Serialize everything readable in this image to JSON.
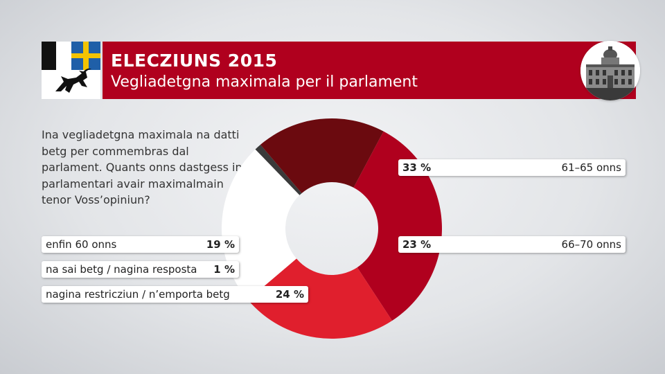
{
  "header": {
    "title": "ELECZIUNS 2015",
    "subtitle": "Vegliadetgna maximala per il parlament"
  },
  "question": "Ina vegliadetgna maximala na datti betg per commembras dal parlament. Quants onns dastgess in parlamentari avair maximalmain tenor Voss’opiniun?",
  "colors": {
    "brand_red": "#b0001e",
    "slice_61_65": "#b0001e",
    "slice_66_70": "#e01f2d",
    "slice_none": "#ffffff",
    "slice_unknown": "#3a3a3a",
    "slice_60": "#6b0a0f"
  },
  "chart_data": {
    "type": "pie",
    "variant": "donut",
    "start_angle_deg": 28,
    "direction": "clockwise",
    "slices": [
      {
        "label": "61–65 onns",
        "value": 33,
        "value_label": "33 %",
        "color": "#b0001e"
      },
      {
        "label": "66–70 onns",
        "value": 23,
        "value_label": "23 %",
        "color": "#e01f2d"
      },
      {
        "label": "nagina restricziun / n’emporta betg",
        "value": 24,
        "value_label": "24 %",
        "color": "#ffffff"
      },
      {
        "label": "na sai betg / nagina resposta",
        "value": 1,
        "value_label": "1 %",
        "color": "#3a3a3a"
      },
      {
        "label": "enfin 60 onns",
        "value": 19,
        "value_label": "19 %",
        "color": "#6b0a0f"
      }
    ]
  }
}
